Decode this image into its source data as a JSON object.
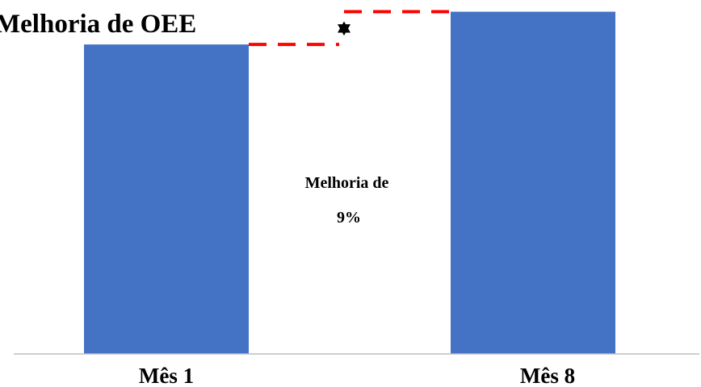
{
  "chart_data": {
    "type": "bar",
    "title": "Melhoria de OEE",
    "categories": [
      "Mês 1",
      "Mês 8"
    ],
    "values": [
      85,
      94
    ],
    "ylim": [
      0,
      95
    ],
    "grid": false,
    "axis_visible": false,
    "colors": {
      "bar": "#4472c4",
      "dashed_line": "#ff0000",
      "arrow": "#000000",
      "baseline": "#bfbfbf"
    },
    "annotation": {
      "lines": [
        "Melhoria de",
        "9%"
      ]
    }
  }
}
